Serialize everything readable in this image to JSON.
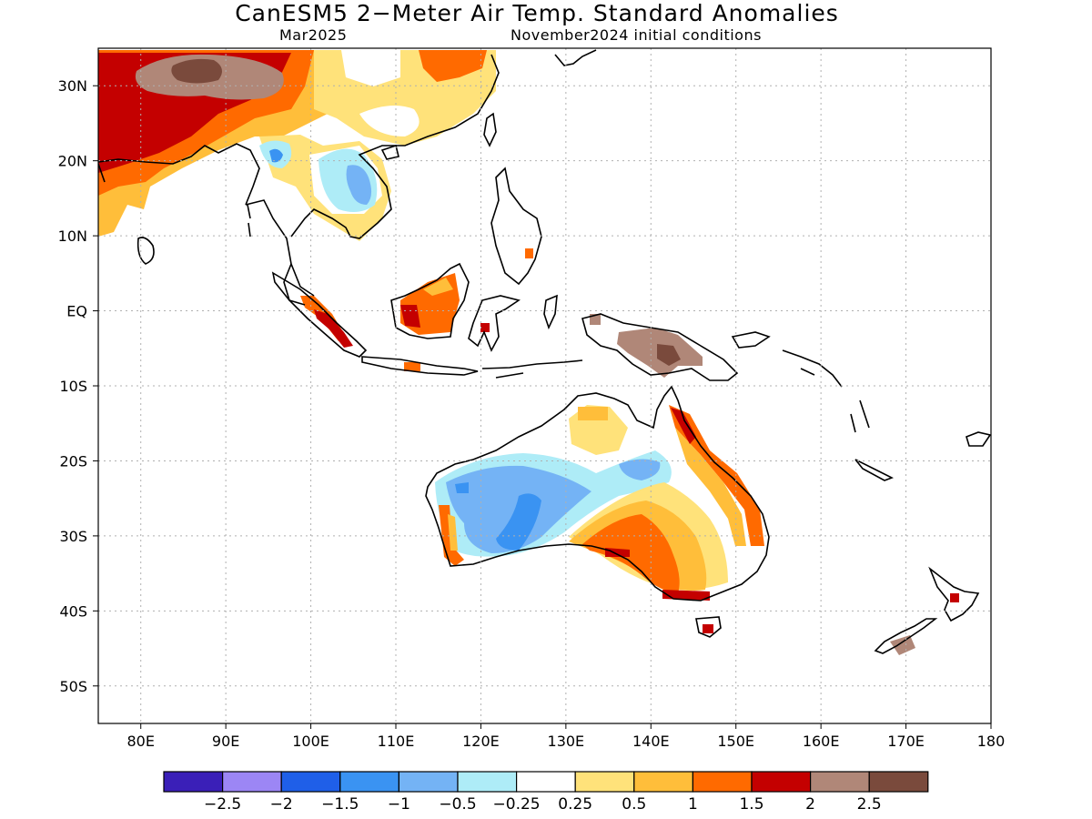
{
  "title": "CanESM5 2−Meter Air Temp. Standard Anomalies",
  "subtitle_left": "Mar2025",
  "subtitle_right": "November2024 initial conditions",
  "map": {
    "lon_range": [
      75,
      180
    ],
    "lat_range": [
      -55,
      35
    ],
    "grid": true
  },
  "axes": {
    "x_ticks": [
      {
        "value": 80,
        "label": "80E"
      },
      {
        "value": 90,
        "label": "90E"
      },
      {
        "value": 100,
        "label": "100E"
      },
      {
        "value": 110,
        "label": "110E"
      },
      {
        "value": 120,
        "label": "120E"
      },
      {
        "value": 130,
        "label": "130E"
      },
      {
        "value": 140,
        "label": "140E"
      },
      {
        "value": 150,
        "label": "150E"
      },
      {
        "value": 160,
        "label": "160E"
      },
      {
        "value": 170,
        "label": "170E"
      },
      {
        "value": 180,
        "label": "180"
      }
    ],
    "y_ticks": [
      {
        "value": 30,
        "label": "30N"
      },
      {
        "value": 20,
        "label": "20N"
      },
      {
        "value": 10,
        "label": "10N"
      },
      {
        "value": 0,
        "label": "EQ"
      },
      {
        "value": -10,
        "label": "10S"
      },
      {
        "value": -20,
        "label": "20S"
      },
      {
        "value": -30,
        "label": "30S"
      },
      {
        "value": -40,
        "label": "40S"
      },
      {
        "value": -50,
        "label": "50S"
      }
    ]
  },
  "colorbar": {
    "colors": [
      "#3a1fb8",
      "#9c86f5",
      "#1f5fe8",
      "#3a93f2",
      "#74b3f5",
      "#aeecf7",
      "#ffffff",
      "#ffe27a",
      "#ffbe3a",
      "#ff6a00",
      "#c40000",
      "#b08778",
      "#7a4a3c"
    ],
    "labels": [
      "−2.5",
      "−2",
      "−1.5",
      "−1",
      "−0.5",
      "−0.25",
      "0.25",
      "0.5",
      "1",
      "1.5",
      "2",
      "2.5"
    ]
  }
}
